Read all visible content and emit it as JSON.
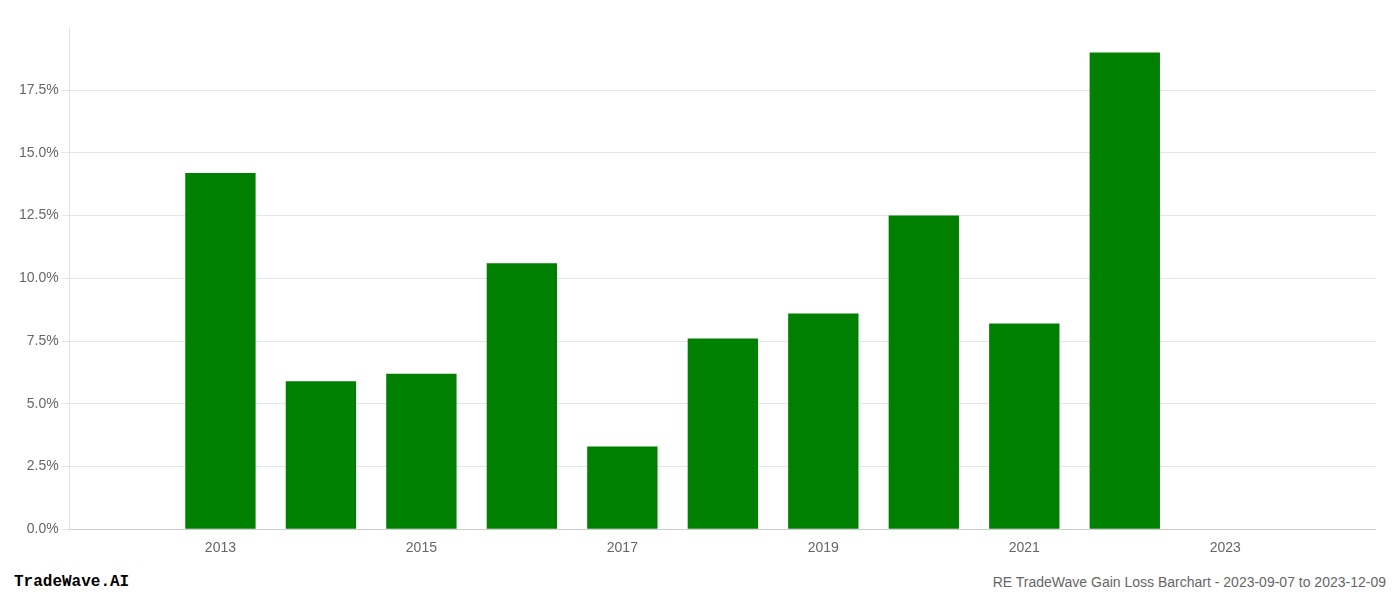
{
  "chart_data": {
    "type": "bar",
    "x": [
      2013,
      2014,
      2015,
      2016,
      2017,
      2018,
      2019,
      2020,
      2021,
      2022
    ],
    "values": [
      0.142,
      0.059,
      0.062,
      0.106,
      0.033,
      0.076,
      0.086,
      0.125,
      0.082,
      0.19
    ],
    "color": "#008000",
    "xlim": [
      2011.5,
      2024.5
    ],
    "xticks": [
      2013,
      2015,
      2017,
      2019,
      2021,
      2023
    ],
    "ylim": [
      0,
      0.2
    ],
    "yticks": [
      {
        "value": 0.0,
        "label": "0.0%"
      },
      {
        "value": 0.025,
        "label": "2.5%"
      },
      {
        "value": 0.05,
        "label": "5.0%"
      },
      {
        "value": 0.075,
        "label": "7.5%"
      },
      {
        "value": 0.1,
        "label": "10.0%"
      },
      {
        "value": 0.125,
        "label": "12.5%"
      },
      {
        "value": 0.15,
        "label": "15.0%"
      },
      {
        "value": 0.175,
        "label": "17.5%"
      }
    ],
    "grid": true,
    "annotations": [
      "TradeWave.AI",
      "RE TradeWave Gain Loss Barchart - 2023-09-07 to 2023-12-09"
    ]
  }
}
